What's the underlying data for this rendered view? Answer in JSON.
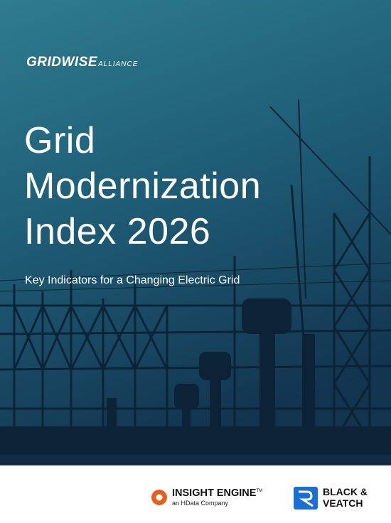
{
  "logo": {
    "name": "GRIDWISE",
    "suffix": "ALLIANCE"
  },
  "title_lines": [
    "Grid",
    "Modernization",
    "Index 2026"
  ],
  "subtitle": "Key Indicators for a Changing Electric Grid",
  "footer": {
    "sponsor1": {
      "name": "INSIGHT ENGINE",
      "mark": "TM",
      "tagline": "an HData Company"
    },
    "sponsor2": {
      "line1": "BLACK &",
      "line2": "VEATCH"
    }
  }
}
